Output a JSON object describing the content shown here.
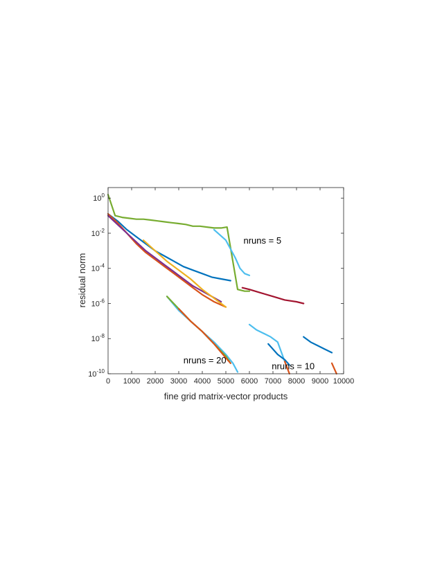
{
  "chart_data": {
    "type": "line",
    "title": "",
    "xlabel": "fine grid matrix-vector products",
    "ylabel": "residual norm",
    "xlim": [
      0,
      10000
    ],
    "ylim_log10": [
      -10,
      0.6
    ],
    "yscale": "log",
    "grid": false,
    "legend": "none",
    "x_ticks": [
      "0",
      "1000",
      "2000",
      "3000",
      "4000",
      "5000",
      "6000",
      "7000",
      "8000",
      "9000",
      "10000"
    ],
    "y_ticks": [
      {
        "base": "10",
        "exp": "0"
      },
      {
        "base": "10",
        "exp": "-2"
      },
      {
        "base": "10",
        "exp": "-4"
      },
      {
        "base": "10",
        "exp": "-6"
      },
      {
        "base": "10",
        "exp": "-8"
      },
      {
        "base": "10",
        "exp": "-10"
      }
    ],
    "annotations": [
      {
        "text": "nruns = 5",
        "x": 5750,
        "y_log10": -2.6
      },
      {
        "text": "nruns = 10",
        "x": 6950,
        "y_log10": -9.75
      },
      {
        "text": "nruns = 20",
        "x": 3200,
        "y_log10": -9.4
      }
    ],
    "series": [
      {
        "color": "#77ac30",
        "x": [
          0,
          300,
          600,
          900,
          1200,
          1500,
          1800,
          2100,
          2400,
          2700,
          3000,
          3300,
          3600,
          3900,
          4200,
          4500,
          4800,
          5050,
          5500,
          5800,
          6000
        ],
        "y_log10": [
          0.2,
          -1.0,
          -1.1,
          -1.15,
          -1.2,
          -1.2,
          -1.25,
          -1.3,
          -1.35,
          -1.4,
          -1.45,
          -1.5,
          -1.6,
          -1.6,
          -1.65,
          -1.7,
          -1.7,
          -1.65,
          -5.2,
          -5.3,
          -5.3
        ]
      },
      {
        "color": "#0072bd",
        "x": [
          0,
          400,
          800,
          1200,
          1600,
          2000,
          2400,
          2800,
          3200,
          3600,
          4000,
          4400,
          4800,
          5200
        ],
        "y_log10": [
          -0.9,
          -1.3,
          -1.8,
          -2.2,
          -2.6,
          -3.0,
          -3.3,
          -3.6,
          -3.9,
          -4.1,
          -4.3,
          -4.5,
          -4.6,
          -4.7
        ]
      },
      {
        "color": "#d95319",
        "x": [
          0,
          400,
          800,
          1200,
          1600,
          2000,
          2400,
          2800,
          3200,
          3600,
          4000,
          4500,
          5000
        ],
        "y_log10": [
          -0.9,
          -1.4,
          -2.0,
          -2.6,
          -3.1,
          -3.5,
          -3.9,
          -4.3,
          -4.7,
          -5.1,
          -5.5,
          -5.9,
          -6.2
        ]
      },
      {
        "color": "#7e2f8e",
        "x": [
          0,
          400,
          800,
          1200,
          1600,
          2000,
          2400,
          2800,
          3200,
          3600,
          4000,
          4400,
          4800
        ],
        "y_log10": [
          -1.0,
          -1.5,
          -2.0,
          -2.5,
          -3.0,
          -3.4,
          -3.8,
          -4.2,
          -4.6,
          -5.0,
          -5.3,
          -5.6,
          -5.9
        ]
      },
      {
        "color": "#edb120",
        "x": [
          1500,
          2000,
          2500,
          3000,
          3500,
          4000,
          4500,
          5000
        ],
        "y_log10": [
          -2.4,
          -3.0,
          -3.6,
          -4.1,
          -4.6,
          -5.2,
          -5.7,
          -6.2
        ]
      },
      {
        "color": "#4dbeee",
        "x": [
          2500,
          3000,
          3500,
          4000,
          4500,
          5000,
          5300,
          5500
        ],
        "y_log10": [
          -5.6,
          -6.4,
          -7.0,
          -7.6,
          -8.2,
          -8.9,
          -9.4,
          -9.9
        ]
      },
      {
        "color": "#77ac30",
        "x": [
          2500,
          3000,
          3500,
          4000,
          4500,
          5000,
          5200
        ],
        "y_log10": [
          -5.6,
          -6.3,
          -7.0,
          -7.6,
          -8.3,
          -9.0,
          -9.4
        ]
      },
      {
        "color": "#d95319",
        "x": [
          3000,
          3500,
          4000,
          4500,
          5000,
          5200
        ],
        "y_log10": [
          -6.3,
          -7.0,
          -7.6,
          -8.3,
          -9.1,
          -9.4
        ]
      },
      {
        "color": "#4dbeee",
        "x": [
          4500,
          5000,
          5400,
          5600,
          5800,
          6000
        ],
        "y_log10": [
          -1.8,
          -2.4,
          -3.4,
          -4.0,
          -4.3,
          -4.4
        ]
      },
      {
        "color": "#a2142f",
        "x": [
          5700,
          6000,
          6500,
          7000,
          7500,
          8000,
          8300
        ],
        "y_log10": [
          -5.1,
          -5.2,
          -5.4,
          -5.6,
          -5.8,
          -5.9,
          -6.0
        ]
      },
      {
        "color": "#4dbeee",
        "x": [
          6000,
          6300,
          6600,
          6900,
          7200,
          7500
        ],
        "y_log10": [
          -7.2,
          -7.5,
          -7.7,
          -7.9,
          -8.2,
          -9.3
        ]
      },
      {
        "color": "#0072bd",
        "x": [
          6800,
          7200,
          7500,
          7700
        ],
        "y_log10": [
          -8.3,
          -8.9,
          -9.2,
          -9.5
        ]
      },
      {
        "color": "#d95319",
        "x": [
          7500,
          7700
        ],
        "y_log10": [
          -9.3,
          -10.0
        ]
      },
      {
        "color": "#0072bd",
        "x": [
          8300,
          8600,
          8900,
          9200,
          9500
        ],
        "y_log10": [
          -7.9,
          -8.2,
          -8.4,
          -8.6,
          -8.8
        ]
      },
      {
        "color": "#d95319",
        "x": [
          9500,
          9700
        ],
        "y_log10": [
          -9.4,
          -10.0
        ]
      }
    ]
  }
}
